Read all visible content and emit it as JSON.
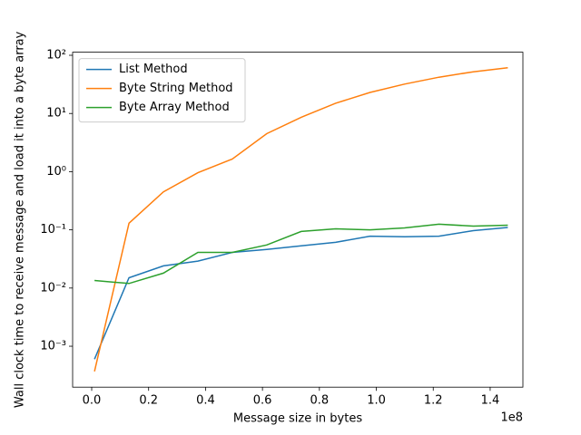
{
  "chart_data": {
    "type": "line",
    "x_label": "Message size in bytes",
    "y_label": "Wall clock time to receive message and load it into a byte array",
    "x_offset_label": "1e8",
    "x": [
      1000000,
      13100000,
      25200000,
      37300000,
      49400000,
      61500000,
      73600000,
      85700000,
      97800000,
      109900000,
      122000000,
      134100000,
      146200000
    ],
    "series": [
      {
        "name": "List Method",
        "color": "#1f77b4",
        "values": [
          0.0006,
          0.015,
          0.024,
          0.029,
          0.041,
          0.046,
          0.053,
          0.061,
          0.078,
          0.076,
          0.078,
          0.097,
          0.11
        ]
      },
      {
        "name": "Byte String Method",
        "color": "#ff7f0e",
        "values": [
          0.00037,
          0.13,
          0.45,
          0.96,
          1.65,
          4.5,
          8.6,
          15,
          23,
          32,
          42,
          52,
          61
        ]
      },
      {
        "name": "Byte Array Method",
        "color": "#2ca02c",
        "values": [
          0.0135,
          0.012,
          0.018,
          0.041,
          0.041,
          0.055,
          0.094,
          0.104,
          0.1,
          0.108,
          0.125,
          0.116,
          0.12
        ]
      }
    ],
    "xlim": [
      -6700000,
      151500000
    ],
    "ylim": [
      0.000198,
      113
    ],
    "log_y": true,
    "legend": "upper left",
    "xticks": [
      {
        "value": 0,
        "label": "0.0"
      },
      {
        "value": 20000000,
        "label": "0.2"
      },
      {
        "value": 40000000,
        "label": "0.4"
      },
      {
        "value": 60000000,
        "label": "0.6"
      },
      {
        "value": 80000000,
        "label": "0.8"
      },
      {
        "value": 100000000,
        "label": "1.0"
      },
      {
        "value": 120000000,
        "label": "1.2"
      },
      {
        "value": 140000000,
        "label": "1.4"
      }
    ],
    "yticks": [
      {
        "value": 0.001,
        "label": "10⁻³"
      },
      {
        "value": 0.01,
        "label": "10⁻²"
      },
      {
        "value": 0.1,
        "label": "10⁻¹"
      },
      {
        "value": 1,
        "label": "10⁰"
      },
      {
        "value": 10,
        "label": "10¹"
      },
      {
        "value": 100,
        "label": "10²"
      }
    ]
  }
}
